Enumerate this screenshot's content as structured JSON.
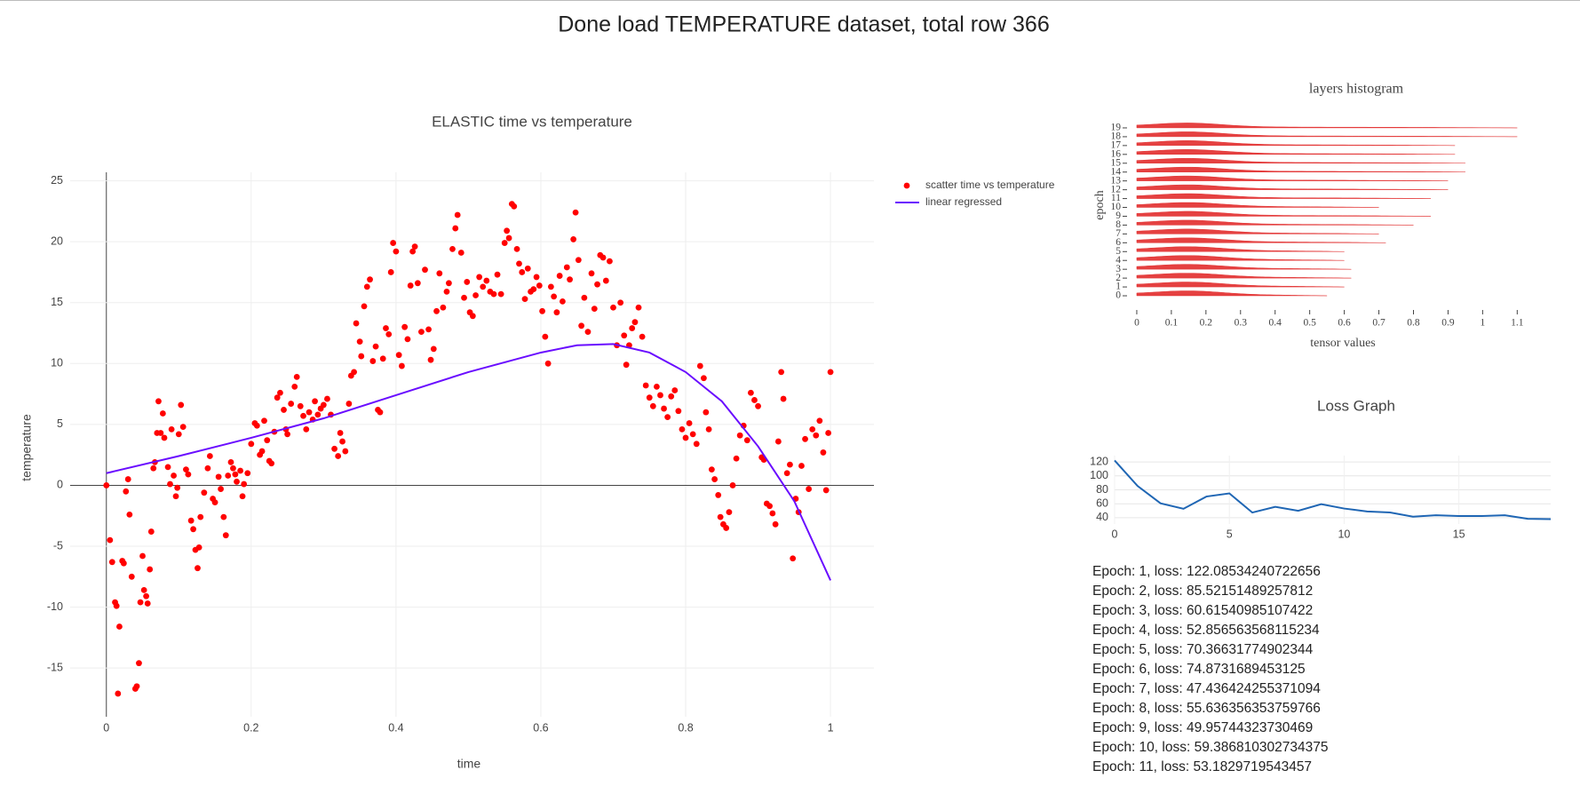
{
  "header": {
    "title": "Done load TEMPERATURE dataset, total row 366"
  },
  "chart_data": [
    {
      "type": "scatter",
      "title": "ELASTIC time vs temperature",
      "x_label": "time",
      "y_label": "temperature",
      "xlim": [
        -0.05,
        1.06
      ],
      "ylim": [
        -19,
        25.7
      ],
      "xticks": [
        0,
        0.2,
        0.4,
        0.6,
        0.8,
        1
      ],
      "yticks": [
        -15,
        -10,
        -5,
        0,
        5,
        10,
        15,
        20,
        25
      ],
      "grid": true,
      "legend": "top-right",
      "series": [
        {
          "name": "scatter time vs temperature",
          "color": "#ff0000",
          "mode": "markers",
          "x": [
            0,
            0.005,
            0.008,
            0.012,
            0.014,
            0.016,
            0.018,
            0.022,
            0.024,
            0.027,
            0.03,
            0.032,
            0.035,
            0.04,
            0.042,
            0.045,
            0.047,
            0.05,
            0.052,
            0.055,
            0.057,
            0.06,
            0.062,
            0.065,
            0.067,
            0.07,
            0.072,
            0.075,
            0.078,
            0.08,
            0.085,
            0.088,
            0.09,
            0.093,
            0.096,
            0.098,
            0.1,
            0.103,
            0.106,
            0.11,
            0.113,
            0.117,
            0.12,
            0.123,
            0.126,
            0.128,
            0.13,
            0.135,
            0.14,
            0.143,
            0.147,
            0.15,
            0.155,
            0.158,
            0.162,
            0.165,
            0.168,
            0.172,
            0.175,
            0.178,
            0.18,
            0.185,
            0.188,
            0.19,
            0.195,
            0.2,
            0.205,
            0.208,
            0.212,
            0.215,
            0.218,
            0.222,
            0.225,
            0.228,
            0.232,
            0.236,
            0.24,
            0.245,
            0.248,
            0.25,
            0.255,
            0.26,
            0.263,
            0.268,
            0.272,
            0.276,
            0.28,
            0.285,
            0.288,
            0.292,
            0.296,
            0.3,
            0.305,
            0.31,
            0.315,
            0.32,
            0.323,
            0.326,
            0.33,
            0.335,
            0.338,
            0.342,
            0.345,
            0.35,
            0.352,
            0.356,
            0.36,
            0.364,
            0.368,
            0.372,
            0.375,
            0.378,
            0.382,
            0.386,
            0.39,
            0.393,
            0.396,
            0.4,
            0.404,
            0.408,
            0.412,
            0.416,
            0.42,
            0.423,
            0.426,
            0.43,
            0.435,
            0.44,
            0.445,
            0.448,
            0.452,
            0.456,
            0.46,
            0.465,
            0.47,
            0.473,
            0.478,
            0.482,
            0.485,
            0.49,
            0.494,
            0.498,
            0.502,
            0.506,
            0.51,
            0.515,
            0.52,
            0.525,
            0.53,
            0.535,
            0.54,
            0.545,
            0.55,
            0.553,
            0.556,
            0.56,
            0.563,
            0.567,
            0.57,
            0.574,
            0.578,
            0.582,
            0.586,
            0.59,
            0.594,
            0.598,
            0.602,
            0.606,
            0.61,
            0.614,
            0.618,
            0.622,
            0.626,
            0.63,
            0.636,
            0.64,
            0.645,
            0.648,
            0.652,
            0.656,
            0.66,
            0.665,
            0.67,
            0.674,
            0.678,
            0.682,
            0.686,
            0.69,
            0.695,
            0.7,
            0.705,
            0.71,
            0.715,
            0.718,
            0.722,
            0.726,
            0.73,
            0.735,
            0.74,
            0.745,
            0.75,
            0.755,
            0.76,
            0.765,
            0.77,
            0.775,
            0.78,
            0.785,
            0.79,
            0.795,
            0.8,
            0.805,
            0.81,
            0.815,
            0.82,
            0.825,
            0.828,
            0.832,
            0.836,
            0.84,
            0.845,
            0.848,
            0.852,
            0.856,
            0.86,
            0.865,
            0.87,
            0.875,
            0.88,
            0.885,
            0.89,
            0.895,
            0.9,
            0.905,
            0.908,
            0.912,
            0.916,
            0.92,
            0.924,
            0.928,
            0.932,
            0.935,
            0.94,
            0.944,
            0.948,
            0.952,
            0.956,
            0.96,
            0.965,
            0.97,
            0.975,
            0.98,
            0.985,
            0.99,
            0.994,
            0.997,
            1
          ],
          "values": [
            0,
            -4.5,
            -6.3,
            -9.6,
            -9.9,
            -17.1,
            -11.6,
            -6.2,
            -6.4,
            -0.5,
            0.5,
            -2.4,
            -7.5,
            -16.7,
            -16.5,
            -14.6,
            -9.6,
            -5.8,
            -8.6,
            -9.1,
            -9.7,
            -6.9,
            -3.8,
            1.4,
            1.9,
            4.3,
            6.9,
            4.3,
            5.9,
            3.9,
            1.5,
            0.1,
            4.6,
            0.8,
            -0.9,
            -0.2,
            4.2,
            6.6,
            4.8,
            1.3,
            0.9,
            -2.9,
            -3.6,
            -5.3,
            -6.8,
            -5.1,
            -2.6,
            -0.6,
            1.4,
            2.4,
            -1.1,
            -1.4,
            0.7,
            -0.3,
            -2.6,
            -4.1,
            0.8,
            1.9,
            1.4,
            0.9,
            0.3,
            1.2,
            -0.9,
            0.1,
            1,
            3.4,
            5.1,
            4.9,
            2.5,
            2.8,
            5.3,
            3.7,
            2,
            1.8,
            4.4,
            7.2,
            7.6,
            6.2,
            4.6,
            4.2,
            6.7,
            8.1,
            8.9,
            6.5,
            5.7,
            4.6,
            6,
            5.4,
            6.9,
            5.8,
            6.3,
            6.6,
            7.1,
            5.8,
            3,
            2.4,
            4.3,
            3.6,
            2.8,
            6.7,
            9,
            9.3,
            13.3,
            11.8,
            10.6,
            14.7,
            16.3,
            16.9,
            10.2,
            11.4,
            6.2,
            6,
            10.4,
            12.9,
            12.4,
            17.5,
            19.9,
            19.2,
            10.7,
            9.8,
            13,
            12,
            16.4,
            19.2,
            19.6,
            16.6,
            12.6,
            17.7,
            12.8,
            10.3,
            11.2,
            14.3,
            17.4,
            14.6,
            15.9,
            16.6,
            19.4,
            21.1,
            22.2,
            19.1,
            15.4,
            16.7,
            14.2,
            13.9,
            15.6,
            17.1,
            16.3,
            16.8,
            15.9,
            15.7,
            17.3,
            15.7,
            19.9,
            20.9,
            20.3,
            23.1,
            22.9,
            19.4,
            18.2,
            17.5,
            15.3,
            17.8,
            15.9,
            16.1,
            17.1,
            16.4,
            14.3,
            12.2,
            10,
            16.3,
            15.5,
            14.2,
            17.2,
            15.1,
            17.9,
            16.9,
            20.2,
            22.4,
            18.5,
            13.1,
            15.4,
            12.6,
            17.4,
            14.5,
            16.5,
            18.9,
            18.7,
            16.8,
            18.4,
            14.6,
            11.5,
            15,
            12.3,
            9.9,
            11.5,
            12.9,
            13.4,
            14.6,
            12.2,
            8.2,
            7.2,
            6.5,
            8.1,
            7.4,
            6.3,
            5.6,
            7.3,
            7.8,
            6.1,
            4.6,
            3.9,
            5.1,
            4.2,
            3.4,
            9.8,
            8.8,
            6,
            4.6,
            1.3,
            0.5,
            -0.8,
            -2.6,
            -3.2,
            -3.5,
            -2.2,
            0,
            2.2,
            4.1,
            4.9,
            3.7,
            7.6,
            7,
            6.5,
            2.3,
            2.1,
            -1.5,
            -1.7,
            -2.3,
            -3.2,
            3.6,
            9.3,
            7.1,
            1,
            1.7,
            -6,
            -1.1,
            -2.2,
            1.6,
            3.8,
            -0.3,
            4.6,
            4.1,
            5.3,
            2.7,
            -0.4,
            4.3,
            9.3
          ]
        },
        {
          "name": "linear regressed",
          "color": "#6a0dff",
          "mode": "lines",
          "x": [
            0,
            0.1,
            0.2,
            0.3,
            0.4,
            0.5,
            0.6,
            0.65,
            0.7,
            0.75,
            0.8,
            0.85,
            0.9,
            0.95,
            1
          ],
          "values": [
            1,
            2.4,
            3.9,
            5.5,
            7.4,
            9.3,
            10.9,
            11.5,
            11.6,
            10.9,
            9.3,
            6.9,
            3.2,
            -1.3,
            -7.8
          ]
        }
      ]
    },
    {
      "type": "ridgeline",
      "title": "layers histogram",
      "x_label": "tensor values",
      "y_label": "epoch",
      "xlim": [
        -0.005,
        1.13
      ],
      "ylim": [
        -0.5,
        19.5
      ],
      "xticks": [
        0,
        0.1,
        0.2,
        0.3,
        0.4,
        0.5,
        0.6,
        0.7,
        0.8,
        0.9,
        1,
        1.1
      ],
      "yticks": [
        0,
        1,
        2,
        3,
        4,
        5,
        6,
        7,
        8,
        9,
        10,
        11,
        12,
        13,
        14,
        15,
        16,
        17,
        18,
        19
      ],
      "color": "#e02020",
      "values": [
        0.55,
        0.6,
        0.62,
        0.62,
        0.6,
        0.6,
        0.72,
        0.7,
        0.8,
        0.85,
        0.7,
        0.85,
        0.9,
        0.9,
        0.95,
        0.95,
        0.92,
        0.92,
        1.1,
        1.1
      ]
    },
    {
      "type": "line",
      "title": "Loss Graph",
      "color": "#1f66b4",
      "xlim": [
        0,
        19
      ],
      "ylim": [
        31,
        129
      ],
      "xticks": [
        0,
        5,
        10,
        15
      ],
      "yticks": [
        40,
        60,
        80,
        100,
        120
      ],
      "grid": true,
      "x": [
        0,
        1,
        2,
        3,
        4,
        5,
        6,
        7,
        8,
        9,
        10,
        11,
        12,
        13,
        14,
        15,
        16,
        17,
        18,
        19
      ],
      "values": [
        122.08534240722656,
        85.52151489257812,
        60.61540985107422,
        52.856563568115234,
        70.36631774902344,
        74.8731689453125,
        47.436424255371094,
        55.636356353759766,
        49.95744323730469,
        59.386810302734375,
        53.1829719543457,
        49.0,
        47.5,
        41.5,
        43.5,
        42.5,
        42.5,
        43.5,
        38.5,
        38
      ]
    }
  ],
  "log": [
    "Epoch: 1, loss: 122.08534240722656",
    "Epoch: 2, loss: 85.52151489257812",
    "Epoch: 3, loss: 60.61540985107422",
    "Epoch: 4, loss: 52.856563568115234",
    "Epoch: 5, loss: 70.36631774902344",
    "Epoch: 6, loss: 74.8731689453125",
    "Epoch: 7, loss: 47.436424255371094",
    "Epoch: 8, loss: 55.636356353759766",
    "Epoch: 9, loss: 49.95744323730469",
    "Epoch: 10, loss: 59.386810302734375",
    "Epoch: 11, loss: 53.1829719543457"
  ]
}
